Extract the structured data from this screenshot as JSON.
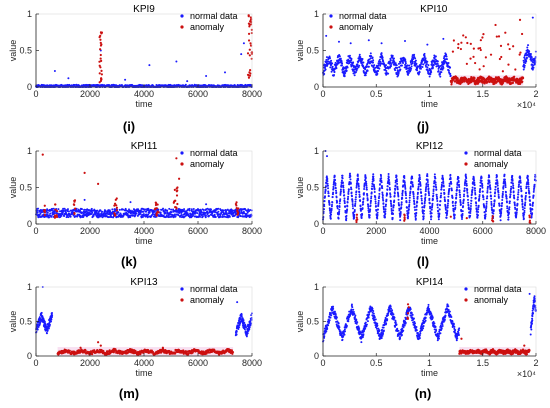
{
  "colors": {
    "normal": "#1a1aff",
    "anomaly": "#cc1010",
    "band": "#f3c6e6",
    "axis": "#262626"
  },
  "chart_data": [
    {
      "type": "scatter",
      "title": "KPI9",
      "caption": "(i)",
      "xlabel": "time",
      "ylabel": "value",
      "xlim": [
        0,
        8000
      ],
      "ylim": [
        0,
        1
      ],
      "xticks": [
        0,
        2000,
        4000,
        6000,
        8000
      ],
      "xtick_labels": [
        "0",
        "2000",
        "4000",
        "6000",
        "8000"
      ],
      "yticks": [
        0,
        0.5,
        1
      ],
      "ytick_labels": [
        "0",
        "0.5",
        "1"
      ],
      "x_exponent": "",
      "legend": {
        "position": "top-right",
        "entries": [
          "normal data",
          "anomaly"
        ]
      },
      "series": [
        {
          "name": "normal data",
          "role": "normal",
          "segments": [
            {
              "x_from": 0,
              "x_to": 8000,
              "points": 700,
              "base": 0.01,
              "amp": 0.0,
              "period": 500,
              "noise": 0.02,
              "seed": 91
            }
          ],
          "outliers": [
            [
              700,
              0.22
            ],
            [
              1200,
              0.12
            ],
            [
              2400,
              0.5
            ],
            [
              3300,
              0.1
            ],
            [
              4200,
              0.3
            ],
            [
              5200,
              0.35
            ],
            [
              5600,
              0.08
            ],
            [
              6300,
              0.15
            ],
            [
              7000,
              0.2
            ],
            [
              7600,
              0.45
            ],
            [
              7700,
              0.6
            ]
          ]
        },
        {
          "name": "anomaly",
          "role": "anomaly",
          "clusters": [
            {
              "x_from": 2350,
              "x_to": 2440,
              "points": 25,
              "y_from": 0.05,
              "y_to": 0.8,
              "seed": 92
            },
            {
              "x_from": 7850,
              "x_to": 8000,
              "points": 30,
              "y_from": 0.05,
              "y_to": 1.0,
              "seed": 93
            }
          ],
          "points": [
            [
              7880,
              0.97
            ],
            [
              7930,
              0.9
            ]
          ]
        }
      ]
    },
    {
      "type": "scatter",
      "title": "KPI10",
      "caption": "(j)",
      "xlabel": "time",
      "ylabel": "value",
      "xlim": [
        0,
        20000
      ],
      "ylim": [
        0,
        1
      ],
      "xticks": [
        0,
        5000,
        10000,
        15000,
        20000
      ],
      "xtick_labels": [
        "0",
        "0.5",
        "1",
        "1.5",
        "2"
      ],
      "yticks": [
        0,
        0.5,
        1
      ],
      "ytick_labels": [
        "0",
        "0.5",
        "1"
      ],
      "x_exponent": "×10⁴",
      "legend": {
        "position": "top-left",
        "entries": [
          "normal data",
          "anomaly"
        ]
      },
      "series": [
        {
          "name": "normal data",
          "role": "normal",
          "segments": [
            {
              "x_from": 0,
              "x_to": 12000,
              "points": 650,
              "base": 0.3,
              "amp": 0.1,
              "period": 1000,
              "noise": 0.07,
              "seed": 101
            },
            {
              "x_from": 18800,
              "x_to": 20000,
              "points": 80,
              "base": 0.4,
              "amp": 0.12,
              "period": 900,
              "noise": 0.08,
              "seed": 102
            }
          ],
          "outliers": [
            [
              300,
              0.7
            ],
            [
              1500,
              0.62
            ],
            [
              2600,
              0.6
            ],
            [
              4300,
              0.64
            ],
            [
              5500,
              0.6
            ],
            [
              7700,
              0.63
            ],
            [
              9800,
              0.58
            ],
            [
              11300,
              0.66
            ],
            [
              19700,
              0.95
            ]
          ]
        },
        {
          "name": "anomaly",
          "role": "anomaly",
          "segments": [
            {
              "x_from": 12000,
              "x_to": 18800,
              "points": 380,
              "base": 0.09,
              "amp": 0.02,
              "period": 800,
              "noise": 0.04,
              "seed": 103
            }
          ],
          "clusters": [
            {
              "x_from": 12000,
              "x_to": 18800,
              "points": 40,
              "y_from": 0.2,
              "y_to": 0.75,
              "seed": 104
            }
          ],
          "points": [
            [
              18500,
              0.92
            ],
            [
              16200,
              0.85
            ]
          ]
        }
      ]
    },
    {
      "type": "scatter",
      "title": "KPI11",
      "caption": "(k)",
      "xlabel": "time",
      "ylabel": "value",
      "xlim": [
        0,
        8000
      ],
      "ylim": [
        0,
        1
      ],
      "xticks": [
        0,
        2000,
        4000,
        6000,
        8000
      ],
      "xtick_labels": [
        "0",
        "2000",
        "4000",
        "6000",
        "8000"
      ],
      "yticks": [
        0,
        0.5,
        1
      ],
      "ytick_labels": [
        "0",
        "0.5",
        "1"
      ],
      "x_exponent": "",
      "legend": {
        "position": "top-right",
        "entries": [
          "normal data",
          "anomaly"
        ]
      },
      "series": [
        {
          "name": "normal data",
          "role": "normal",
          "segments": [
            {
              "x_from": 0,
              "x_to": 8000,
              "points": 900,
              "base": 0.15,
              "amp": 0.0,
              "period": 500,
              "noise": 0.06,
              "seed": 111
            }
          ],
          "outliers": [
            [
              1800,
              0.33
            ],
            [
              3500,
              0.3
            ],
            [
              6300,
              0.27
            ]
          ]
        },
        {
          "name": "anomaly",
          "role": "anomaly",
          "clusters": [
            {
              "x_from": 300,
              "x_to": 350,
              "points": 6,
              "y_from": 0.12,
              "y_to": 0.28,
              "seed": 112
            },
            {
              "x_from": 700,
              "x_to": 780,
              "points": 10,
              "y_from": 0.08,
              "y_to": 0.3,
              "seed": 113
            },
            {
              "x_from": 1400,
              "x_to": 1450,
              "points": 8,
              "y_from": 0.12,
              "y_to": 0.35,
              "seed": 114
            },
            {
              "x_from": 2900,
              "x_to": 3000,
              "points": 10,
              "y_from": 0.1,
              "y_to": 0.35,
              "seed": 115
            },
            {
              "x_from": 4400,
              "x_to": 4550,
              "points": 12,
              "y_from": 0.1,
              "y_to": 0.3,
              "seed": 116
            },
            {
              "x_from": 5100,
              "x_to": 5250,
              "points": 14,
              "y_from": 0.2,
              "y_to": 0.5,
              "seed": 117
            },
            {
              "x_from": 7400,
              "x_to": 7500,
              "points": 10,
              "y_from": 0.12,
              "y_to": 0.3,
              "seed": 118
            }
          ],
          "points": [
            [
              250,
              0.95
            ],
            [
              1800,
              0.7
            ],
            [
              5200,
              0.9
            ],
            [
              5300,
              0.62
            ],
            [
              2300,
              0.55
            ]
          ]
        }
      ]
    },
    {
      "type": "scatter",
      "title": "KPI12",
      "caption": "(l)",
      "xlabel": "time",
      "ylabel": "value",
      "xlim": [
        0,
        8000
      ],
      "ylim": [
        0,
        1
      ],
      "xticks": [
        0,
        2000,
        4000,
        6000,
        8000
      ],
      "xtick_labels": [
        "0",
        "2000",
        "4000",
        "6000",
        "8000"
      ],
      "yticks": [
        0,
        0.5,
        1
      ],
      "ytick_labels": [
        "0",
        "0.5",
        "1"
      ],
      "x_exponent": "",
      "legend": {
        "position": "top-right",
        "entries": [
          "normal data",
          "anomaly"
        ]
      },
      "series": [
        {
          "name": "normal data",
          "role": "normal",
          "segments": [
            {
              "x_from": 0,
              "x_to": 8000,
              "points": 1400,
              "base": 0.37,
              "amp": 0.3,
              "period": 290,
              "noise": 0.025,
              "seed": 121
            }
          ],
          "outliers": [
            [
              100,
              1.0
            ],
            [
              150,
              0.93
            ]
          ]
        },
        {
          "name": "anomaly",
          "role": "anomaly",
          "clusters": [
            {
              "x_from": 1240,
              "x_to": 1290,
              "points": 5,
              "y_from": 0.0,
              "y_to": 0.15,
              "seed": 122
            },
            {
              "x_from": 3050,
              "x_to": 3100,
              "points": 5,
              "y_from": 0.0,
              "y_to": 0.2,
              "seed": 123
            },
            {
              "x_from": 6350,
              "x_to": 6400,
              "points": 5,
              "y_from": 0.0,
              "y_to": 0.15,
              "seed": 124
            },
            {
              "x_from": 7750,
              "x_to": 7800,
              "points": 5,
              "y_from": 0.0,
              "y_to": 0.15,
              "seed": 125
            }
          ],
          "points": [
            [
              5400,
              0.08
            ],
            [
              4800,
              0.1
            ]
          ]
        }
      ]
    },
    {
      "type": "scatter",
      "title": "KPI13",
      "caption": "(m)",
      "xlabel": "time",
      "ylabel": "value",
      "xlim": [
        0,
        8000
      ],
      "ylim": [
        0,
        1
      ],
      "xticks": [
        0,
        2000,
        4000,
        6000,
        8000
      ],
      "xtick_labels": [
        "0",
        "2000",
        "4000",
        "6000",
        "8000"
      ],
      "yticks": [
        0,
        0.5,
        1
      ],
      "ytick_labels": [
        "0",
        "0.5",
        "1"
      ],
      "x_exponent": "",
      "legend": {
        "position": "top-right",
        "entries": [
          "normal data",
          "anomaly"
        ]
      },
      "series": [
        {
          "name": "normal data",
          "role": "normal",
          "segments": [
            {
              "x_from": 0,
              "x_to": 600,
              "points": 140,
              "base": 0.48,
              "amp": 0.1,
              "period": 400,
              "noise": 0.06,
              "seed": 131
            },
            {
              "x_from": 7400,
              "x_to": 8000,
              "points": 140,
              "base": 0.45,
              "amp": 0.12,
              "period": 400,
              "noise": 0.06,
              "seed": 132
            }
          ],
          "outliers": [
            [
              250,
              1.0
            ],
            [
              7450,
              0.78
            ],
            [
              1400,
              0.05
            ]
          ]
        },
        {
          "name": "anomaly",
          "role": "anomaly",
          "segments": [
            {
              "x_from": 800,
              "x_to": 7300,
              "points": 520,
              "base": 0.06,
              "amp": 0.02,
              "period": 600,
              "noise": 0.025,
              "seed": 133
            }
          ],
          "points": [
            [
              2300,
              0.2
            ],
            [
              2400,
              0.15
            ],
            [
              1650,
              0.12
            ],
            [
              4700,
              0.12
            ]
          ]
        }
      ]
    },
    {
      "type": "scatter",
      "title": "KPI14",
      "caption": "(n)",
      "xlabel": "time",
      "ylabel": "value",
      "xlim": [
        0,
        20000
      ],
      "ylim": [
        0,
        1
      ],
      "xticks": [
        0,
        5000,
        10000,
        15000,
        20000
      ],
      "xtick_labels": [
        "0",
        "0.5",
        "1",
        "1.5",
        "2"
      ],
      "yticks": [
        0,
        0.5,
        1
      ],
      "ytick_labels": [
        "0",
        "0.5",
        "1"
      ],
      "x_exponent": "×10⁴",
      "legend": {
        "position": "top-right",
        "entries": [
          "normal data",
          "anomaly"
        ]
      },
      "series": [
        {
          "name": "normal data",
          "role": "normal",
          "segments": [
            {
              "x_from": 0,
              "x_to": 12800,
              "points": 750,
              "base": 0.48,
              "amp": 0.22,
              "period": 1800,
              "noise": 0.06,
              "seed": 141
            },
            {
              "x_from": 19500,
              "x_to": 20000,
              "points": 50,
              "base": 0.6,
              "amp": 0.25,
              "period": 700,
              "noise": 0.06,
              "seed": 142
            }
          ],
          "outliers": [
            [
              19400,
              0.9
            ]
          ]
        },
        {
          "name": "anomaly",
          "role": "anomaly",
          "segments": [
            {
              "x_from": 12800,
              "x_to": 19400,
              "points": 380,
              "base": 0.06,
              "amp": 0.015,
              "period": 700,
              "noise": 0.025,
              "seed": 143
            }
          ],
          "clusters": [
            {
              "x_from": 7900,
              "x_to": 8100,
              "points": 6,
              "y_from": 0.45,
              "y_to": 0.75,
              "seed": 144
            }
          ],
          "points": [
            [
              18900,
              0.15
            ],
            [
              13000,
              0.25
            ]
          ]
        }
      ]
    }
  ]
}
